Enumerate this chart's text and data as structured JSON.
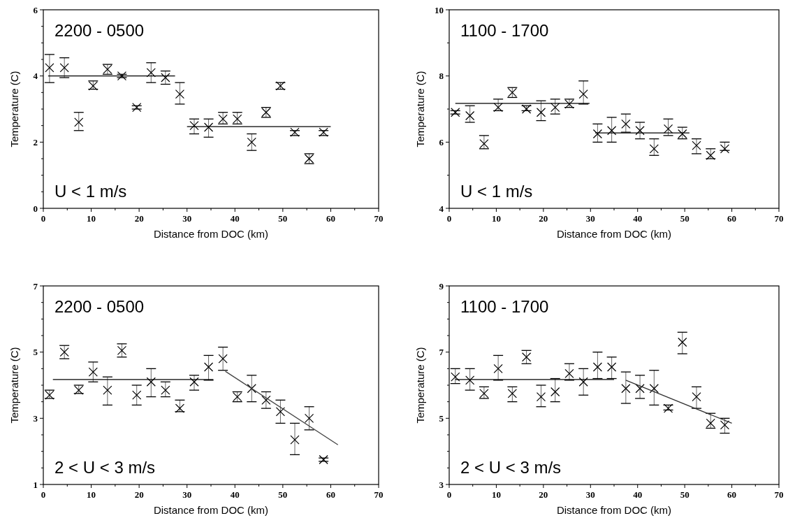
{
  "chart_data": [
    {
      "type": "scatter",
      "xlabel": "Distance from DOC  (km)",
      "ylabel": "Temperature  (C)",
      "annotations": [
        "2200 - 0500",
        "U < 1 m/s"
      ],
      "xlim": [
        0,
        70
      ],
      "ylim": [
        0,
        6
      ],
      "xticks": [
        0,
        {
          "value": 5,
          "label": null
        },
        10,
        {
          "value": 15,
          "label": null
        },
        20,
        {
          "value": 25,
          "label": null
        },
        30,
        {
          "value": 35,
          "label": null
        },
        40,
        {
          "value": 45,
          "label": null
        },
        50,
        {
          "value": 55,
          "label": null
        },
        60,
        {
          "value": 65,
          "label": null
        },
        70
      ],
      "yticks": [
        0,
        {
          "value": 0.5,
          "label": null
        },
        {
          "value": 1,
          "label": null
        },
        {
          "value": 1.5,
          "label": null
        },
        2,
        {
          "value": 2.5,
          "label": null
        },
        {
          "value": 3,
          "label": null
        },
        {
          "value": 3.5,
          "label": null
        },
        4,
        {
          "value": 4.5,
          "label": null
        },
        {
          "value": 5,
          "label": null
        },
        {
          "value": 5.5,
          "label": null
        },
        6
      ],
      "grid": false,
      "series": [
        {
          "type": "scatter",
          "color": "#000000",
          "marker": "cross",
          "x": [
            1.3,
            4.4,
            7.4,
            10.4,
            13.4,
            16.4,
            19.5,
            22.5,
            25.5,
            28.5,
            31.5,
            34.5,
            37.5,
            40.5,
            43.5,
            46.5,
            49.5,
            52.5,
            55.5,
            58.5
          ],
          "values": [
            4.25,
            4.25,
            2.6,
            3.7,
            4.2,
            4.0,
            3.05,
            4.1,
            3.95,
            3.45,
            2.5,
            2.45,
            2.7,
            2.7,
            2.0,
            2.9,
            3.7,
            2.3,
            1.5,
            2.3
          ],
          "errors": [
            [
              3.8,
              4.65
            ],
            [
              3.95,
              4.55
            ],
            [
              2.35,
              2.9
            ],
            [
              3.6,
              3.85
            ],
            [
              4.05,
              4.35
            ],
            [
              3.95,
              4.05
            ],
            [
              3.0,
              3.1
            ],
            [
              3.8,
              4.4
            ],
            [
              3.75,
              4.15
            ],
            [
              3.15,
              3.8
            ],
            [
              2.25,
              2.7
            ],
            [
              2.15,
              2.7
            ],
            [
              2.55,
              2.9
            ],
            [
              2.55,
              2.9
            ],
            [
              1.75,
              2.25
            ],
            [
              2.75,
              3.05
            ],
            [
              3.6,
              3.8
            ],
            [
              2.2,
              2.35
            ],
            [
              1.35,
              1.65
            ],
            [
              2.2,
              2.35
            ]
          ]
        },
        {
          "type": "line",
          "color": "#000000",
          "marker": "none",
          "x": [
            1,
            27.5
          ],
          "values": [
            4.0,
            4.0
          ]
        },
        {
          "type": "line",
          "color": "#000000",
          "marker": "none",
          "x": [
            30,
            60
          ],
          "values": [
            2.47,
            2.47
          ]
        }
      ]
    },
    {
      "type": "scatter",
      "xlabel": "Distance from DOC  (km)",
      "ylabel": "Temperature  (C)",
      "annotations": [
        "1100 - 1700",
        "U < 1 m/s"
      ],
      "xlim": [
        0,
        70
      ],
      "ylim": [
        4,
        10
      ],
      "xticks": [
        0,
        {
          "value": 5,
          "label": null
        },
        10,
        {
          "value": 15,
          "label": null
        },
        20,
        {
          "value": 25,
          "label": null
        },
        30,
        {
          "value": 35,
          "label": null
        },
        40,
        {
          "value": 45,
          "label": null
        },
        50,
        {
          "value": 55,
          "label": null
        },
        60,
        {
          "value": 65,
          "label": null
        },
        70
      ],
      "yticks": [
        4,
        {
          "value": 5,
          "label": null
        },
        6,
        {
          "value": 7,
          "label": null
        },
        8,
        {
          "value": 9,
          "label": null
        },
        10
      ],
      "grid": false,
      "series": [
        {
          "type": "scatter",
          "color": "#000000",
          "marker": "cross",
          "x": [
            1.3,
            4.4,
            7.4,
            10.4,
            13.4,
            16.4,
            19.5,
            22.5,
            25.5,
            28.5,
            31.5,
            34.5,
            37.5,
            40.5,
            43.5,
            46.5,
            49.5,
            52.5,
            55.5,
            58.5
          ],
          "values": [
            6.9,
            6.8,
            5.95,
            7.05,
            7.5,
            7.0,
            6.9,
            7.05,
            7.15,
            7.45,
            6.25,
            6.35,
            6.55,
            6.35,
            5.8,
            6.4,
            6.25,
            5.9,
            5.6,
            5.8
          ],
          "errors": [
            [
              6.85,
              6.95
            ],
            [
              6.6,
              7.1
            ],
            [
              5.8,
              6.2
            ],
            [
              6.95,
              7.3
            ],
            [
              7.35,
              7.65
            ],
            [
              6.95,
              7.1
            ],
            [
              6.65,
              7.25
            ],
            [
              6.85,
              7.3
            ],
            [
              7.05,
              7.3
            ],
            [
              7.15,
              7.85
            ],
            [
              6.0,
              6.55
            ],
            [
              6.0,
              6.75
            ],
            [
              6.3,
              6.85
            ],
            [
              6.1,
              6.6
            ],
            [
              5.6,
              6.1
            ],
            [
              6.2,
              6.7
            ],
            [
              6.1,
              6.45
            ],
            [
              5.65,
              6.1
            ],
            [
              5.5,
              5.8
            ],
            [
              5.75,
              6.0
            ]
          ]
        },
        {
          "type": "line",
          "color": "#000000",
          "marker": "none",
          "x": [
            1.3,
            29.8
          ],
          "values": [
            7.17,
            7.17
          ]
        },
        {
          "type": "line",
          "color": "#000000",
          "marker": "none",
          "x": [
            31,
            51
          ],
          "values": [
            6.28,
            6.28
          ]
        }
      ]
    },
    {
      "type": "scatter",
      "xlabel": "Distance from DOC  (km)",
      "ylabel": "Temperature  (C)",
      "annotations": [
        "2200 - 0500",
        "2 < U < 3 m/s"
      ],
      "xlim": [
        0,
        70
      ],
      "ylim": [
        1,
        7
      ],
      "xticks": [
        0,
        {
          "value": 5,
          "label": null
        },
        10,
        {
          "value": 15,
          "label": null
        },
        20,
        {
          "value": 25,
          "label": null
        },
        30,
        {
          "value": 35,
          "label": null
        },
        40,
        {
          "value": 45,
          "label": null
        },
        50,
        {
          "value": 55,
          "label": null
        },
        60,
        {
          "value": 65,
          "label": null
        },
        70
      ],
      "yticks": [
        1,
        {
          "value": 1.5,
          "label": null
        },
        {
          "value": 2,
          "label": null
        },
        {
          "value": 2.5,
          "label": null
        },
        3,
        {
          "value": 3.5,
          "label": null
        },
        {
          "value": 4,
          "label": null
        },
        {
          "value": 4.5,
          "label": null
        },
        5,
        {
          "value": 5.5,
          "label": null
        },
        {
          "value": 6,
          "label": null
        },
        {
          "value": 6.5,
          "label": null
        },
        7
      ],
      "grid": false,
      "series": [
        {
          "type": "scatter",
          "color": "#000000",
          "marker": "cross",
          "x": [
            1.3,
            4.4,
            7.4,
            10.4,
            13.4,
            16.4,
            19.5,
            22.5,
            25.5,
            28.5,
            31.5,
            34.5,
            37.5,
            40.5,
            43.5,
            46.5,
            49.5,
            52.5,
            55.5,
            58.5
          ],
          "values": [
            3.7,
            5.0,
            3.85,
            4.4,
            3.85,
            5.05,
            3.7,
            4.1,
            3.85,
            3.3,
            4.1,
            4.55,
            4.8,
            3.65,
            3.9,
            3.55,
            3.2,
            2.35,
            3.0,
            1.75
          ],
          "errors": [
            [
              3.6,
              3.85
            ],
            [
              4.8,
              5.2
            ],
            [
              3.75,
              4.0
            ],
            [
              4.1,
              4.7
            ],
            [
              3.4,
              4.25
            ],
            [
              4.85,
              5.25
            ],
            [
              3.4,
              4.0
            ],
            [
              3.65,
              4.5
            ],
            [
              3.65,
              4.1
            ],
            [
              3.2,
              3.55
            ],
            [
              3.85,
              4.3
            ],
            [
              4.15,
              4.9
            ],
            [
              4.45,
              5.15
            ],
            [
              3.5,
              3.8
            ],
            [
              3.5,
              4.3
            ],
            [
              3.3,
              3.8
            ],
            [
              2.85,
              3.55
            ],
            [
              1.9,
              2.85
            ],
            [
              2.65,
              3.35
            ],
            [
              1.7,
              1.8
            ]
          ]
        },
        {
          "type": "line",
          "color": "#000000",
          "marker": "none",
          "x": [
            2,
            35.5
          ],
          "values": [
            4.17,
            4.17
          ]
        },
        {
          "type": "line",
          "color": "#444444",
          "marker": "none",
          "x": [
            38,
            61.5
          ],
          "values": [
            4.42,
            2.2
          ]
        }
      ]
    },
    {
      "type": "scatter",
      "xlabel": "Distance from DOC  (km)",
      "ylabel": "Temperature  (C)",
      "annotations": [
        "1100 - 1700",
        "2 < U < 3 m/s"
      ],
      "xlim": [
        0,
        70
      ],
      "ylim": [
        3,
        9
      ],
      "xticks": [
        0,
        {
          "value": 5,
          "label": null
        },
        10,
        {
          "value": 15,
          "label": null
        },
        20,
        {
          "value": 25,
          "label": null
        },
        30,
        {
          "value": 35,
          "label": null
        },
        40,
        {
          "value": 45,
          "label": null
        },
        50,
        {
          "value": 55,
          "label": null
        },
        60,
        {
          "value": 65,
          "label": null
        },
        70
      ],
      "yticks": [
        3,
        {
          "value": 3.5,
          "label": null
        },
        {
          "value": 4,
          "label": null
        },
        {
          "value": 4.5,
          "label": null
        },
        5,
        {
          "value": 5.5,
          "label": null
        },
        {
          "value": 6,
          "label": null
        },
        {
          "value": 6.5,
          "label": null
        },
        7,
        {
          "value": 7.5,
          "label": null
        },
        {
          "value": 8,
          "label": null
        },
        {
          "value": 8.5,
          "label": null
        },
        9
      ],
      "grid": false,
      "series": [
        {
          "type": "scatter",
          "color": "#000000",
          "marker": "cross",
          "x": [
            1.3,
            4.4,
            7.4,
            10.4,
            13.4,
            16.4,
            19.5,
            22.5,
            25.5,
            28.5,
            31.5,
            34.5,
            37.5,
            40.5,
            43.5,
            46.5,
            49.5,
            52.5,
            55.5,
            58.5
          ],
          "values": [
            6.25,
            6.15,
            5.75,
            6.5,
            5.75,
            6.85,
            5.65,
            5.8,
            6.35,
            6.1,
            6.55,
            6.55,
            5.9,
            5.9,
            5.9,
            5.3,
            7.3,
            5.65,
            4.85,
            4.8
          ],
          "errors": [
            [
              6.05,
              6.5
            ],
            [
              5.85,
              6.5
            ],
            [
              5.6,
              5.95
            ],
            [
              6.15,
              6.9
            ],
            [
              5.5,
              5.95
            ],
            [
              6.65,
              7.05
            ],
            [
              5.35,
              6.0
            ],
            [
              5.5,
              6.2
            ],
            [
              6.15,
              6.65
            ],
            [
              5.7,
              6.5
            ],
            [
              6.2,
              7.0
            ],
            [
              6.2,
              6.85
            ],
            [
              5.45,
              6.4
            ],
            [
              5.6,
              6.3
            ],
            [
              5.4,
              6.45
            ],
            [
              5.25,
              5.4
            ],
            [
              6.95,
              7.6
            ],
            [
              5.3,
              5.95
            ],
            [
              4.7,
              5.15
            ],
            [
              4.55,
              5.0
            ]
          ]
        },
        {
          "type": "line",
          "color": "#000000",
          "marker": "none",
          "x": [
            1.3,
            35
          ],
          "values": [
            6.17,
            6.17
          ]
        },
        {
          "type": "line",
          "color": "#333333",
          "marker": "none",
          "x": [
            37.5,
            60
          ],
          "values": [
            6.15,
            4.85
          ]
        }
      ]
    }
  ]
}
